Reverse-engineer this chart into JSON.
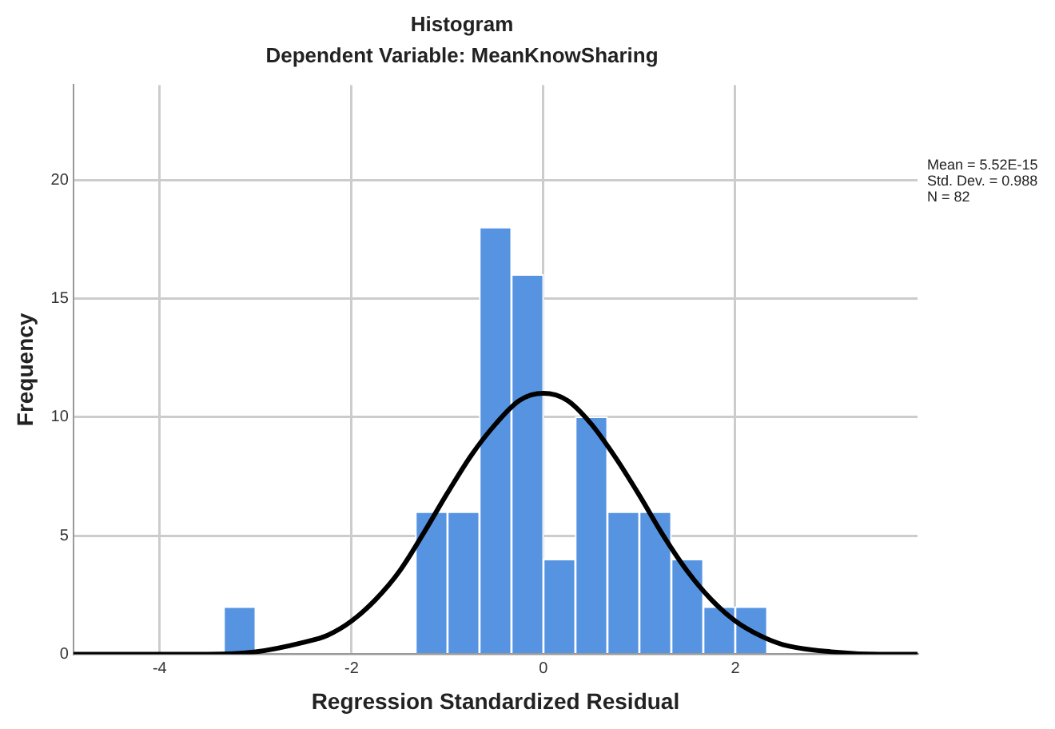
{
  "chart_data": {
    "type": "histogram",
    "title": "Histogram",
    "subtitle": "Dependent Variable: MeanKnowSharing",
    "xlabel": "Regression Standardized Residual",
    "ylabel": "Frequency",
    "bins": [
      -3.333,
      -3,
      -2.667,
      -2.333,
      -2,
      -1.667,
      -1.333,
      -1,
      -0.667,
      -0.333,
      0,
      0.333,
      0.667,
      1,
      1.333,
      1.667,
      2,
      2.333
    ],
    "values": [
      2,
      0,
      0,
      0,
      0,
      0,
      6,
      6,
      18,
      16,
      4,
      10,
      6,
      6,
      4,
      2,
      2
    ],
    "color": "#5694e2",
    "series": [
      {
        "type": "line",
        "color": "#000000",
        "x": [
          -4.9,
          -4,
          -3.5,
          -3,
          -2.5,
          -2.25,
          -2,
          -1.75,
          -1.5,
          -1.25,
          -1,
          -0.75,
          -0.5,
          -0.25,
          0,
          0.25,
          0.5,
          0.75,
          1,
          1.25,
          1.5,
          1.75,
          2,
          2.25,
          2.5,
          3,
          3.5,
          3.9
        ],
        "values": [
          0,
          0,
          0,
          0.1,
          0.5,
          0.8,
          1.4,
          2.3,
          3.5,
          5.1,
          6.8,
          8.4,
          9.7,
          10.7,
          11,
          10.7,
          9.7,
          8.3,
          6.7,
          5,
          3.5,
          2.3,
          1.4,
          0.8,
          0.4,
          0.1,
          0,
          0
        ]
      }
    ],
    "xlim": [
      -4.9,
      3.9
    ],
    "ylim": [
      0,
      24
    ],
    "xticks": [
      -4,
      -2,
      0,
      2
    ],
    "yticks": [
      0,
      5,
      10,
      15,
      20
    ],
    "grid": true,
    "legend": false,
    "annotations": [
      "Mean = 5.52E-15",
      "Std. Dev. = 0.988",
      "N = 82"
    ]
  }
}
